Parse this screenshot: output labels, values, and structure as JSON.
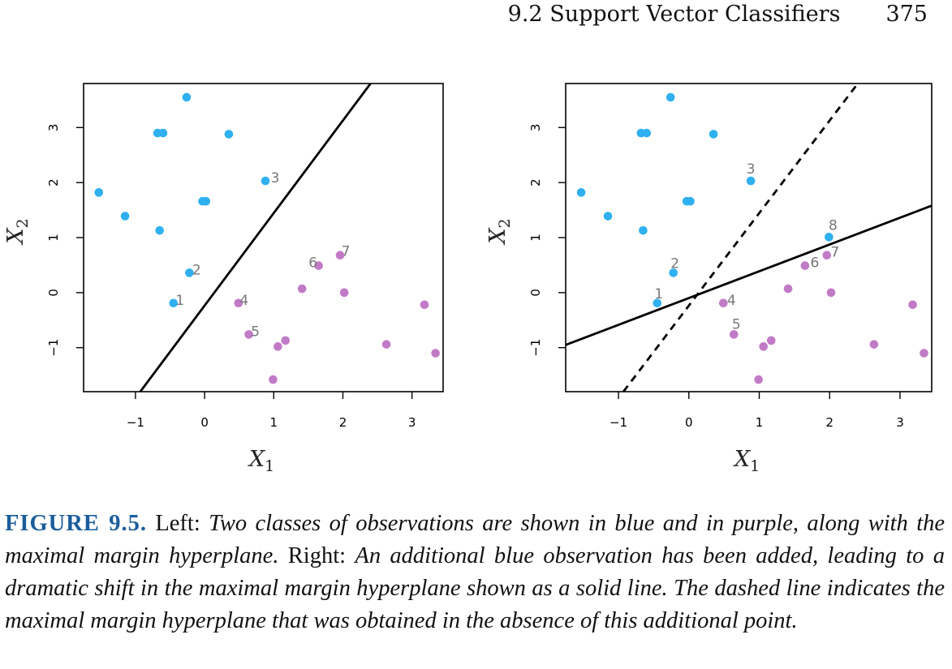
{
  "header": {
    "section": "9.2 Support Vector Classifiers",
    "page": "375"
  },
  "chart_data": [
    {
      "type": "scatter",
      "xlabel": "X1",
      "ylabel": "X2",
      "xlim": [
        -1.75,
        3.45
      ],
      "ylim": [
        -1.8,
        3.8
      ],
      "xticks": [
        "−1",
        "0",
        "1",
        "2",
        "3"
      ],
      "yticks": [
        "−1",
        "0",
        "1",
        "2",
        "3"
      ],
      "colors": {
        "blue": "#2fb0f0",
        "purple": "#c17ac6"
      },
      "points": [
        {
          "x": -0.26,
          "y": 3.55,
          "cls": "blue"
        },
        {
          "x": -0.68,
          "y": 2.9,
          "cls": "blue"
        },
        {
          "x": -0.6,
          "y": 2.9,
          "cls": "blue"
        },
        {
          "x": 0.35,
          "y": 2.88,
          "cls": "blue"
        },
        {
          "x": 0.88,
          "y": 2.03,
          "cls": "blue",
          "label": "3"
        },
        {
          "x": -1.53,
          "y": 1.82,
          "cls": "blue"
        },
        {
          "x": -0.03,
          "y": 1.66,
          "cls": "blue"
        },
        {
          "x": 0.02,
          "y": 1.66,
          "cls": "blue"
        },
        {
          "x": -1.15,
          "y": 1.39,
          "cls": "blue"
        },
        {
          "x": -0.65,
          "y": 1.13,
          "cls": "blue"
        },
        {
          "x": -0.22,
          "y": 0.36,
          "cls": "blue",
          "label": "2"
        },
        {
          "x": -0.45,
          "y": -0.19,
          "cls": "blue",
          "label": "1"
        },
        {
          "x": 1.65,
          "y": 0.49,
          "cls": "purple",
          "label": "6"
        },
        {
          "x": 1.96,
          "y": 0.68,
          "cls": "purple",
          "label": "7"
        },
        {
          "x": 1.41,
          "y": 0.07,
          "cls": "purple"
        },
        {
          "x": 2.02,
          "y": 0.0,
          "cls": "purple"
        },
        {
          "x": 0.49,
          "y": -0.19,
          "cls": "purple",
          "label": "4"
        },
        {
          "x": 3.18,
          "y": -0.22,
          "cls": "purple"
        },
        {
          "x": 0.64,
          "y": -0.76,
          "cls": "purple",
          "label": "5"
        },
        {
          "x": 1.17,
          "y": -0.87,
          "cls": "purple"
        },
        {
          "x": 1.06,
          "y": -0.98,
          "cls": "purple"
        },
        {
          "x": 2.63,
          "y": -0.94,
          "cls": "purple"
        },
        {
          "x": 3.34,
          "y": -1.1,
          "cls": "purple"
        },
        {
          "x": 0.99,
          "y": -1.58,
          "cls": "purple"
        }
      ],
      "lines": [
        {
          "style": "solid",
          "x1": -0.93,
          "y1": -1.8,
          "x2": 2.4,
          "y2": 3.8
        }
      ]
    },
    {
      "type": "scatter",
      "xlabel": "X1",
      "ylabel": "X2",
      "xlim": [
        -1.75,
        3.45
      ],
      "ylim": [
        -1.8,
        3.8
      ],
      "xticks": [
        "−1",
        "0",
        "1",
        "2",
        "3"
      ],
      "yticks": [
        "−1",
        "0",
        "1",
        "2",
        "3"
      ],
      "colors": {
        "blue": "#2fb0f0",
        "purple": "#c17ac6"
      },
      "points": [
        {
          "x": -0.26,
          "y": 3.55,
          "cls": "blue"
        },
        {
          "x": -0.68,
          "y": 2.9,
          "cls": "blue"
        },
        {
          "x": -0.6,
          "y": 2.9,
          "cls": "blue"
        },
        {
          "x": 0.35,
          "y": 2.88,
          "cls": "blue"
        },
        {
          "x": 0.88,
          "y": 2.03,
          "cls": "blue",
          "label": "3"
        },
        {
          "x": -1.53,
          "y": 1.82,
          "cls": "blue"
        },
        {
          "x": -0.03,
          "y": 1.66,
          "cls": "blue"
        },
        {
          "x": 0.02,
          "y": 1.66,
          "cls": "blue"
        },
        {
          "x": -1.15,
          "y": 1.39,
          "cls": "blue"
        },
        {
          "x": -0.65,
          "y": 1.13,
          "cls": "blue"
        },
        {
          "x": 1.99,
          "y": 1.01,
          "cls": "blue",
          "label": "8"
        },
        {
          "x": -0.22,
          "y": 0.36,
          "cls": "blue",
          "label": "2"
        },
        {
          "x": -0.45,
          "y": -0.19,
          "cls": "blue",
          "label": "1"
        },
        {
          "x": 1.65,
          "y": 0.49,
          "cls": "purple",
          "label": "6"
        },
        {
          "x": 1.96,
          "y": 0.68,
          "cls": "purple",
          "label": "7"
        },
        {
          "x": 1.41,
          "y": 0.07,
          "cls": "purple"
        },
        {
          "x": 2.02,
          "y": 0.0,
          "cls": "purple"
        },
        {
          "x": 0.49,
          "y": -0.19,
          "cls": "purple",
          "label": "4"
        },
        {
          "x": 3.18,
          "y": -0.22,
          "cls": "purple"
        },
        {
          "x": 0.64,
          "y": -0.76,
          "cls": "purple",
          "label": "5"
        },
        {
          "x": 1.17,
          "y": -0.87,
          "cls": "purple"
        },
        {
          "x": 1.06,
          "y": -0.98,
          "cls": "purple"
        },
        {
          "x": 2.63,
          "y": -0.94,
          "cls": "purple"
        },
        {
          "x": 3.34,
          "y": -1.1,
          "cls": "purple"
        },
        {
          "x": 0.99,
          "y": -1.58,
          "cls": "purple"
        }
      ],
      "lines": [
        {
          "style": "dashed",
          "x1": -0.93,
          "y1": -1.8,
          "x2": 2.4,
          "y2": 3.8
        },
        {
          "style": "solid",
          "x1": -1.75,
          "y1": -0.95,
          "x2": 3.45,
          "y2": 1.58
        }
      ]
    }
  ],
  "caption": {
    "label": "FIGURE 9.5.",
    "left_word": "Left:",
    "left_text": "Two classes of observations are shown in blue and in purple, along with the maximal margin hyperplane.",
    "right_word": "Right:",
    "right_text": "An additional blue observation has been added, leading to a dramatic shift in the maximal margin hyperplane shown as a solid line. The dashed line indicates the maximal margin hyperplane that was obtained in the absence of this additional point."
  }
}
